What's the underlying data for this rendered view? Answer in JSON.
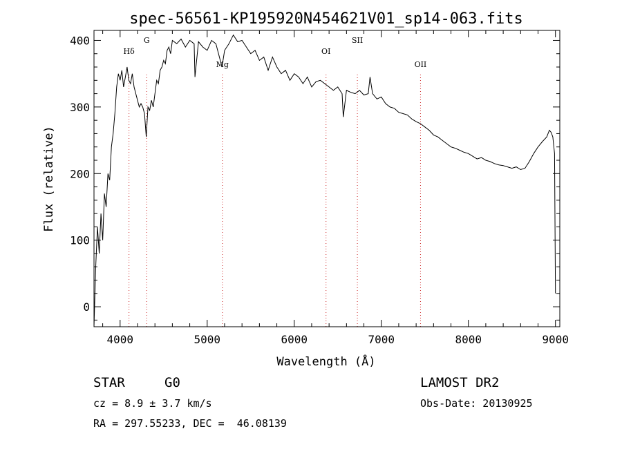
{
  "chart_data": {
    "type": "line",
    "title": "spec-56561-KP195920N454621V01_sp14-063.fits",
    "xlabel": "Wavelength (Å)",
    "ylabel": "Flux (relative)",
    "xlim": [
      3700,
      9050
    ],
    "ylim": [
      -30,
      415
    ],
    "xticks": [
      4000,
      5000,
      6000,
      7000,
      8000,
      9000
    ],
    "yticks": [
      0,
      100,
      200,
      300,
      400
    ],
    "grid": false,
    "series": [
      {
        "x": [
          3700,
          3720,
          3740,
          3760,
          3780,
          3800,
          3820,
          3840,
          3860,
          3880,
          3900,
          3920,
          3940,
          3960,
          3980,
          4000,
          4020,
          4040,
          4060,
          4080,
          4100,
          4120,
          4140,
          4160,
          4180,
          4200,
          4220,
          4240,
          4260,
          4280,
          4300,
          4320,
          4340,
          4360,
          4380,
          4400,
          4420,
          4440,
          4460,
          4480,
          4500,
          4520,
          4540,
          4560,
          4580,
          4600,
          4650,
          4700,
          4750,
          4800,
          4850,
          4860,
          4900,
          4950,
          5000,
          5050,
          5100,
          5150,
          5170,
          5200,
          5250,
          5300,
          5350,
          5400,
          5450,
          5500,
          5550,
          5600,
          5650,
          5700,
          5750,
          5800,
          5850,
          5900,
          5950,
          6000,
          6050,
          6100,
          6150,
          6200,
          6250,
          6300,
          6350,
          6400,
          6450,
          6500,
          6550,
          6563,
          6600,
          6650,
          6700,
          6750,
          6800,
          6850,
          6870,
          6900,
          6950,
          7000,
          7050,
          7100,
          7150,
          7200,
          7250,
          7300,
          7350,
          7400,
          7450,
          7500,
          7550,
          7600,
          7650,
          7700,
          7750,
          7800,
          7850,
          7900,
          7950,
          8000,
          8050,
          8100,
          8150,
          8200,
          8250,
          8300,
          8350,
          8400,
          8450,
          8500,
          8550,
          8600,
          8650,
          8700,
          8750,
          8800,
          8850,
          8900,
          8930,
          8950,
          8970,
          8990,
          9000
        ],
        "y": [
          -30,
          60,
          120,
          80,
          140,
          100,
          170,
          150,
          200,
          190,
          240,
          260,
          290,
          330,
          350,
          340,
          355,
          330,
          345,
          360,
          340,
          335,
          350,
          330,
          320,
          310,
          300,
          305,
          300,
          290,
          255,
          300,
          295,
          310,
          300,
          320,
          340,
          335,
          355,
          360,
          370,
          365,
          385,
          390,
          380,
          400,
          395,
          402,
          390,
          400,
          395,
          345,
          398,
          390,
          385,
          400,
          395,
          370,
          360,
          385,
          395,
          408,
          398,
          400,
          390,
          380,
          385,
          370,
          375,
          355,
          375,
          360,
          350,
          355,
          340,
          350,
          345,
          335,
          345,
          330,
          338,
          340,
          335,
          330,
          325,
          330,
          320,
          285,
          325,
          322,
          320,
          325,
          318,
          320,
          345,
          320,
          312,
          315,
          305,
          300,
          298,
          292,
          290,
          288,
          282,
          278,
          275,
          270,
          265,
          258,
          255,
          250,
          245,
          240,
          238,
          235,
          232,
          230,
          226,
          222,
          224,
          220,
          218,
          215,
          213,
          212,
          210,
          208,
          210,
          206,
          208,
          218,
          230,
          240,
          248,
          255,
          265,
          262,
          255,
          230,
          20
        ]
      }
    ],
    "line_markers": [
      {
        "label": "Hδ",
        "x": 4102
      },
      {
        "label": "G",
        "x": 4305
      },
      {
        "label": "Mg",
        "x": 5175
      },
      {
        "label": "OI",
        "x": 6365
      },
      {
        "label": "SII",
        "x": 6725
      },
      {
        "label": "OII",
        "x": 7450
      }
    ]
  },
  "info": {
    "class_label": "STAR",
    "subclass_label": "G0",
    "cz_text": "cz = 8.9 ± 3.7 km/s",
    "radec_text": "RA = 297.55233, DEC =  46.08139",
    "survey": "LAMOST DR2",
    "obs_date": "Obs-Date: 20130925"
  }
}
